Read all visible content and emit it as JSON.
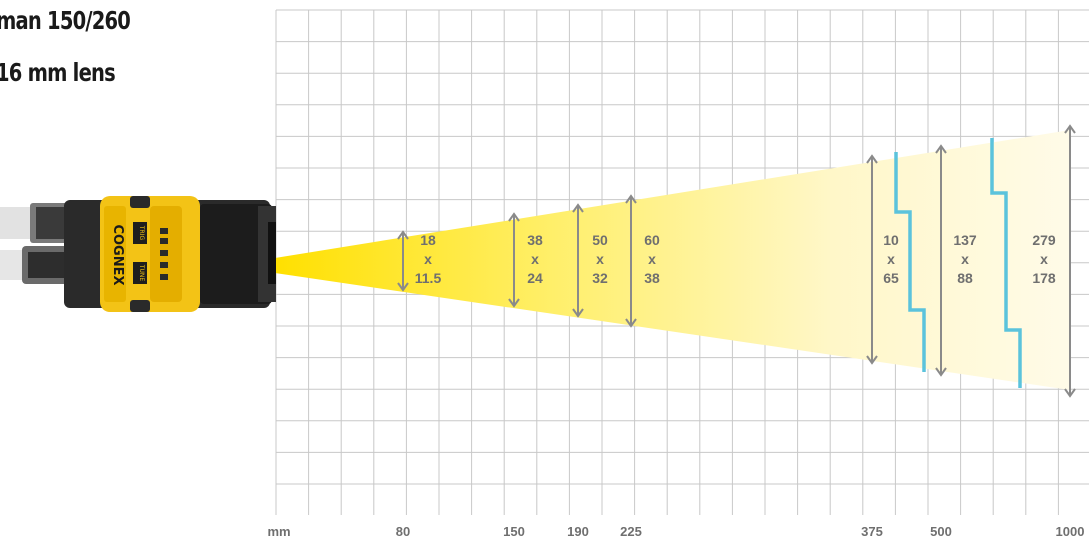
{
  "title": {
    "line1": "man 150/260",
    "line2": "16 mm lens"
  },
  "camera": {
    "brand": "COGNEX",
    "buttons": [
      "TRIG",
      "TUNE"
    ],
    "body_color": "#f3c316"
  },
  "axis": {
    "unit": "mm",
    "ticks": [
      "80",
      "150",
      "190",
      "225",
      "375",
      "500",
      "1000"
    ]
  },
  "fields_of_view": [
    {
      "distance": "80",
      "width": "18",
      "sep": "x",
      "height": "11.5"
    },
    {
      "distance": "150",
      "width": "38",
      "sep": "x",
      "height": "24"
    },
    {
      "distance": "190",
      "width": "50",
      "sep": "x",
      "height": "32"
    },
    {
      "distance": "225",
      "width": "60",
      "sep": "x",
      "height": "38"
    },
    {
      "distance": "375",
      "width": "10",
      "sep": "x",
      "height": "65"
    },
    {
      "distance": "500",
      "width": "137",
      "sep": "x",
      "height": "88"
    },
    {
      "distance": "1000",
      "width": "279",
      "sep": "x",
      "height": "178"
    }
  ],
  "colors": {
    "grid": "#c8c8c8",
    "beam_start": "#ffe200",
    "beam_end": "#fffbe6",
    "arrow": "#8a8a8a",
    "depth_marker": "#5bc3dc",
    "label": "#6f6f6f"
  }
}
